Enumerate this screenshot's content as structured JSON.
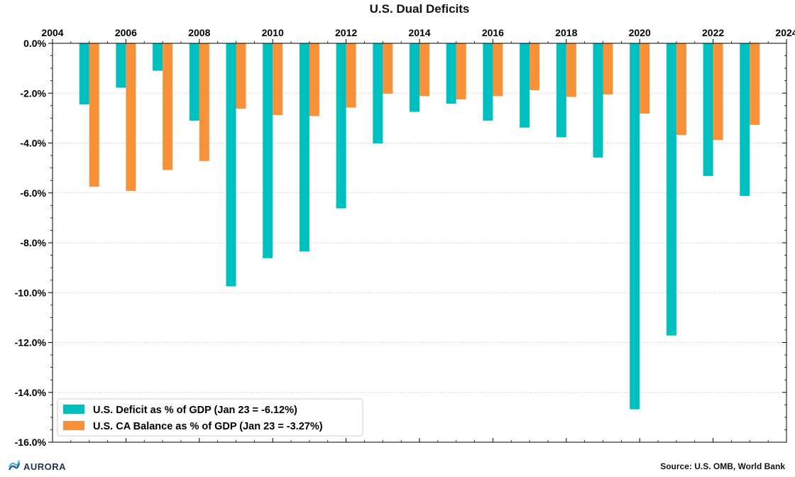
{
  "chart_data": {
    "type": "bar",
    "title": "U.S. Dual Deficits",
    "x_ticks": [
      "2004",
      "2006",
      "2008",
      "2010",
      "2012",
      "2014",
      "2016",
      "2018",
      "2020",
      "2022",
      "2024"
    ],
    "xlim": [
      2004,
      2024
    ],
    "categories": [
      "2005",
      "2006",
      "2007",
      "2008",
      "2009",
      "2010",
      "2011",
      "2012",
      "2013",
      "2014",
      "2015",
      "2016",
      "2017",
      "2018",
      "2019",
      "2020",
      "2021",
      "2022",
      "2023"
    ],
    "series": [
      {
        "name": "U.S. Deficit as % of GDP (Jan 23 = -6.12%)",
        "color": "#00bfbf",
        "values": [
          -2.45,
          -1.78,
          -1.1,
          -3.1,
          -9.75,
          -8.62,
          -8.35,
          -6.62,
          -4.02,
          -2.75,
          -2.42,
          -3.1,
          -3.38,
          -3.77,
          -4.58,
          -14.68,
          -11.72,
          -5.32,
          -6.12
        ]
      },
      {
        "name": "U.S. CA Balance as % of GDP (Jan 23 = -3.27%)",
        "color": "#f7923a",
        "values": [
          -5.75,
          -5.92,
          -5.08,
          -4.72,
          -2.62,
          -2.88,
          -2.92,
          -2.58,
          -2.02,
          -2.12,
          -2.25,
          -2.12,
          -1.88,
          -2.15,
          -2.05,
          -2.82,
          -3.68,
          -3.88,
          -3.27
        ]
      }
    ],
    "ylim": [
      -16,
      0
    ],
    "y_ticks": [
      0,
      -2,
      -4,
      -6,
      -8,
      -10,
      -12,
      -14,
      -16
    ],
    "y_tick_labels": [
      "0.0%",
      "-2.0%",
      "-4.0%",
      "-6.0%",
      "-8.0%",
      "-10.0%",
      "-12.0%",
      "-14.0%",
      "-16.0%"
    ],
    "xlabel": "",
    "ylabel": "",
    "grid": "horizontal dotted",
    "legend": "bottom-left"
  },
  "source": "Source: U.S. OMB, World Bank",
  "logo_text": "AURORA"
}
